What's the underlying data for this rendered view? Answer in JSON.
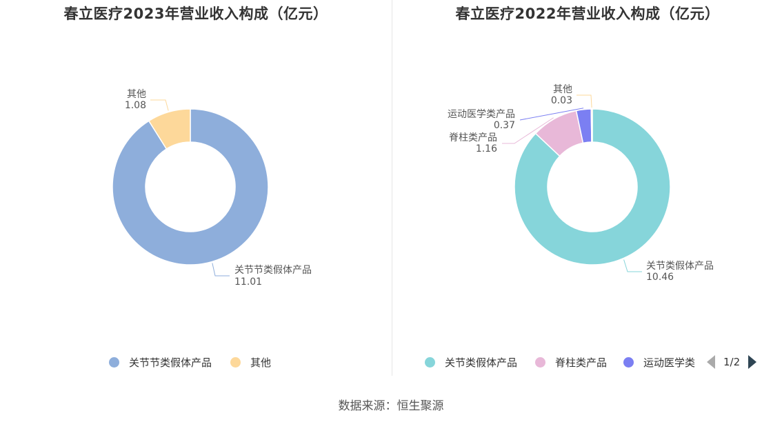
{
  "source": "数据来源：恒生聚源",
  "chart_data": [
    {
      "type": "pie",
      "title": "春立医疗2023年营业收入构成（亿元）",
      "categories": [
        "关节节类假体产品",
        "其他"
      ],
      "values": [
        11.01,
        1.08
      ],
      "value_labels": [
        "11.01",
        "1.08"
      ],
      "slice_labels": [
        "关节节类假体产品",
        "其他"
      ],
      "colors": [
        "#8eaedb",
        "#fdd89a"
      ],
      "legend": [
        "关节节类假体产品",
        "其他"
      ],
      "legend_position": "bottom"
    },
    {
      "type": "pie",
      "title": "春立医疗2022年营业收入构成（亿元）",
      "categories": [
        "关节类假体产品",
        "脊柱类产品",
        "运动医学类产品",
        "其他"
      ],
      "values": [
        10.46,
        1.16,
        0.37,
        0.03
      ],
      "value_labels": [
        "10.46",
        "1.16",
        "0.37",
        "0.03"
      ],
      "slice_labels": [
        "关节类假体产品",
        "脊柱类产品",
        "运动医学类产品",
        "其他"
      ],
      "colors": [
        "#86d5da",
        "#e8b8d8",
        "#7b7ff2",
        "#fdd89a"
      ],
      "legend": [
        "关节类假体产品",
        "脊柱类产品",
        "运动医学类"
      ],
      "legend_position": "bottom",
      "legend_pager": "1/2"
    }
  ]
}
